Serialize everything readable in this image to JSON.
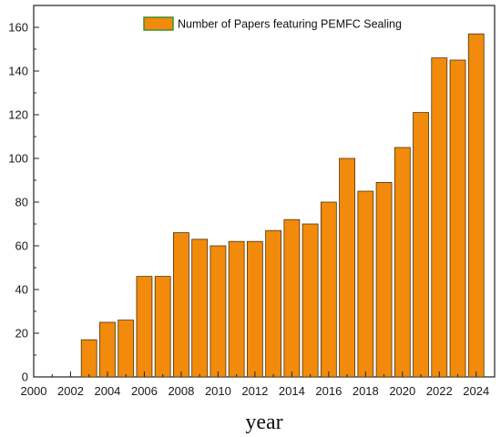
{
  "chart_data": {
    "type": "bar",
    "title": "",
    "xlabel": "year",
    "ylabel": "",
    "legend": {
      "label": "Number of Papers featuring PEMFC Sealing",
      "placement": "top-center"
    },
    "categories": [
      2001,
      2002,
      2003,
      2004,
      2005,
      2006,
      2007,
      2008,
      2009,
      2010,
      2011,
      2012,
      2013,
      2014,
      2015,
      2016,
      2017,
      2018,
      2019,
      2020,
      2021,
      2022,
      2023,
      2024
    ],
    "values": [
      0,
      0,
      17,
      25,
      26,
      46,
      46,
      66,
      63,
      60,
      62,
      62,
      67,
      72,
      70,
      80,
      100,
      85,
      89,
      105,
      121,
      146,
      145,
      157
    ],
    "xlim": [
      2000,
      2025
    ],
    "ylim": [
      0,
      170
    ],
    "x_ticks": [
      "2000",
      "2002",
      "2004",
      "2006",
      "2008",
      "2010",
      "2012",
      "2014",
      "2016",
      "2018",
      "2020",
      "2022",
      "2024"
    ],
    "y_ticks": [
      "0",
      "20",
      "40",
      "60",
      "80",
      "100",
      "120",
      "140",
      "160"
    ],
    "grid": false,
    "colors": {
      "bar_fill": "#f28a0c",
      "bar_edge": "#4a3510",
      "legend_edge": "#3f8f2a",
      "axis": "#222222"
    }
  }
}
